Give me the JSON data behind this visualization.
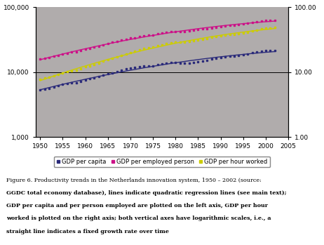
{
  "years": [
    1950,
    1951,
    1952,
    1953,
    1954,
    1955,
    1956,
    1957,
    1958,
    1959,
    1960,
    1961,
    1962,
    1963,
    1964,
    1965,
    1966,
    1967,
    1968,
    1969,
    1970,
    1971,
    1972,
    1973,
    1974,
    1975,
    1976,
    1977,
    1978,
    1979,
    1980,
    1981,
    1982,
    1983,
    1984,
    1985,
    1986,
    1987,
    1988,
    1989,
    1990,
    1991,
    1992,
    1993,
    1994,
    1995,
    1996,
    1997,
    1998,
    1999,
    2000,
    2001,
    2002
  ],
  "gdp_per_capita": [
    5400,
    5550,
    5700,
    5900,
    6200,
    6500,
    6750,
    6950,
    6950,
    7250,
    7650,
    7900,
    8250,
    8500,
    9050,
    9450,
    9850,
    10150,
    10750,
    11200,
    11650,
    11850,
    12150,
    12650,
    12650,
    12400,
    13050,
    13450,
    13850,
    14050,
    14150,
    13850,
    13650,
    13850,
    14250,
    14650,
    14850,
    15150,
    15850,
    16450,
    17050,
    17250,
    17650,
    17550,
    17950,
    18550,
    19150,
    19850,
    20550,
    21150,
    21850,
    21750,
    21450
  ],
  "gdp_per_employed": [
    16000,
    16400,
    16900,
    17500,
    18300,
    19100,
    19800,
    20400,
    20500,
    21400,
    22600,
    23300,
    24400,
    24900,
    26600,
    27600,
    28800,
    29700,
    31400,
    32400,
    33500,
    34200,
    35400,
    36600,
    37100,
    37400,
    38900,
    39900,
    41200,
    41900,
    42600,
    42400,
    42300,
    43000,
    44300,
    45400,
    46200,
    47000,
    48300,
    49500,
    50900,
    51700,
    52900,
    53000,
    54100,
    55400,
    56900,
    58400,
    59900,
    61100,
    62400,
    62400,
    62700
  ],
  "gdp_per_hour": [
    7.8,
    8.1,
    8.4,
    8.8,
    9.3,
    9.8,
    10.2,
    10.6,
    10.8,
    11.3,
    12.1,
    12.6,
    13.3,
    13.7,
    14.8,
    15.6,
    16.5,
    17.1,
    18.3,
    19.1,
    20.1,
    20.9,
    22.1,
    23.2,
    23.8,
    24.3,
    25.6,
    26.6,
    27.8,
    28.5,
    29.1,
    29.1,
    29.2,
    29.8,
    30.8,
    31.6,
    32.3,
    33.1,
    34.3,
    35.3,
    36.3,
    37.1,
    38.2,
    38.5,
    39.3,
    40.5,
    41.8,
    43.3,
    44.8,
    46.3,
    47.8,
    48.1,
    48.8
  ],
  "color_capita": "#2b2b7a",
  "color_employed": "#cc1188",
  "color_hour": "#cccc00",
  "bg_color": "#b0acac",
  "xlim": [
    1949,
    2005
  ],
  "ylim_left": [
    1000,
    100000
  ],
  "ylim_right": [
    1.0,
    100.0
  ],
  "xticks": [
    1950,
    1955,
    1960,
    1965,
    1970,
    1975,
    1980,
    1985,
    1990,
    1995,
    2000,
    2005
  ],
  "yticks_left": [
    1000,
    10000,
    100000
  ],
  "yticks_right": [
    1.0,
    10.0,
    100.0
  ],
  "ytick_labels_left": [
    "1,000",
    "10,000",
    "100,000"
  ],
  "ytick_labels_right": [
    "1.00",
    "10.00",
    "100.00"
  ],
  "legend_labels": [
    "GDP per capita",
    "GDP per employed person",
    "GDP per hour worked"
  ],
  "markersize": 2.0,
  "linewidth": 1.0,
  "caption_normal": "Figure 6. Productivity trends in the Netherlands innovation system, 1950 – 2002 (source: ",
  "caption_bold_1": "GGDC total economy database",
  "caption_normal_2": "), lines indicate quadratic regression lines (see main text);",
  "caption_bold_2": "\nGDP per capita and per person employed are plotted on the left axis, GDP per hour\nworked is plotted on the right axis; both vertical axes have logarithmic scales, i.e., a\nstraight line indicates a fixed growth rate over time"
}
